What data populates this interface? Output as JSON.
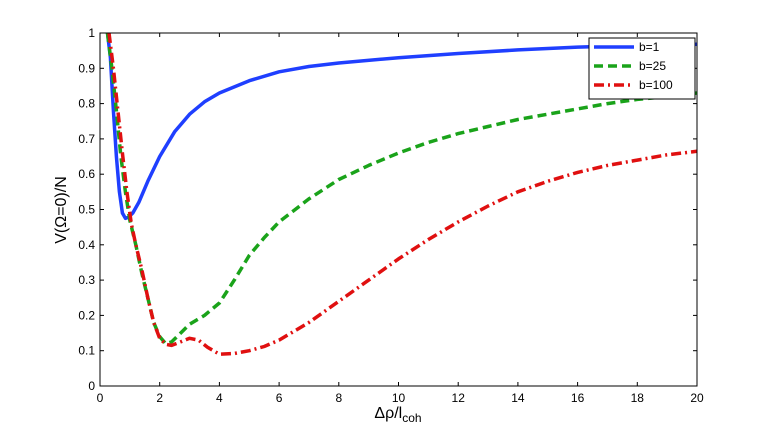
{
  "chart_data": {
    "type": "line",
    "xlabel": "Δρ/l",
    "xlabel_sub": "coh",
    "ylabel": "V(Ω=0)/N",
    "xlim": [
      0,
      20
    ],
    "ylim": [
      0,
      1
    ],
    "x_ticks": [
      "0",
      "2",
      "4",
      "6",
      "8",
      "10",
      "12",
      "14",
      "16",
      "18",
      "20"
    ],
    "y_ticks": [
      "0",
      "0.1",
      "0.2",
      "0.3",
      "0.4",
      "0.5",
      "0.6",
      "0.7",
      "0.8",
      "0.9",
      "1"
    ],
    "grid": false,
    "legend_position": "top-right",
    "series": [
      {
        "name": "b=1",
        "color": "#1f3fff",
        "style": "solid",
        "points": [
          [
            0.25,
            1.0
          ],
          [
            0.35,
            0.93
          ],
          [
            0.45,
            0.78
          ],
          [
            0.55,
            0.65
          ],
          [
            0.65,
            0.55
          ],
          [
            0.75,
            0.49
          ],
          [
            0.85,
            0.475
          ],
          [
            0.95,
            0.478
          ],
          [
            1.1,
            0.49
          ],
          [
            1.3,
            0.52
          ],
          [
            1.6,
            0.58
          ],
          [
            2.0,
            0.65
          ],
          [
            2.5,
            0.72
          ],
          [
            3.0,
            0.77
          ],
          [
            3.5,
            0.805
          ],
          [
            4.0,
            0.83
          ],
          [
            5.0,
            0.865
          ],
          [
            6.0,
            0.89
          ],
          [
            7.0,
            0.905
          ],
          [
            8.0,
            0.915
          ],
          [
            10.0,
            0.93
          ],
          [
            12.0,
            0.942
          ],
          [
            14.0,
            0.952
          ],
          [
            16.0,
            0.96
          ],
          [
            18.0,
            0.965
          ],
          [
            20.0,
            0.968
          ]
        ]
      },
      {
        "name": "b=25",
        "color": "#1aa31a",
        "style": "dashed",
        "points": [
          [
            0.25,
            1.0
          ],
          [
            0.4,
            0.9
          ],
          [
            0.55,
            0.78
          ],
          [
            0.7,
            0.65
          ],
          [
            0.85,
            0.55
          ],
          [
            1.0,
            0.47
          ],
          [
            1.2,
            0.4
          ],
          [
            1.4,
            0.32
          ],
          [
            1.6,
            0.25
          ],
          [
            1.8,
            0.18
          ],
          [
            2.0,
            0.14
          ],
          [
            2.2,
            0.12
          ],
          [
            2.4,
            0.125
          ],
          [
            2.7,
            0.15
          ],
          [
            3.0,
            0.175
          ],
          [
            3.5,
            0.2
          ],
          [
            4.0,
            0.235
          ],
          [
            4.5,
            0.3
          ],
          [
            5.0,
            0.37
          ],
          [
            5.5,
            0.42
          ],
          [
            6.0,
            0.465
          ],
          [
            7.0,
            0.53
          ],
          [
            8.0,
            0.585
          ],
          [
            9.0,
            0.625
          ],
          [
            10.0,
            0.66
          ],
          [
            11.0,
            0.69
          ],
          [
            12.0,
            0.715
          ],
          [
            13.0,
            0.735
          ],
          [
            14.0,
            0.755
          ],
          [
            15.0,
            0.77
          ],
          [
            16.0,
            0.785
          ],
          [
            17.0,
            0.8
          ],
          [
            18.0,
            0.812
          ],
          [
            19.0,
            0.82
          ],
          [
            20.0,
            0.83
          ]
        ]
      },
      {
        "name": "b=100",
        "color": "#e01010",
        "style": "dashdot",
        "points": [
          [
            0.3,
            1.0
          ],
          [
            0.45,
            0.9
          ],
          [
            0.6,
            0.78
          ],
          [
            0.75,
            0.66
          ],
          [
            0.9,
            0.55
          ],
          [
            1.05,
            0.46
          ],
          [
            1.2,
            0.4
          ],
          [
            1.4,
            0.33
          ],
          [
            1.6,
            0.25
          ],
          [
            1.8,
            0.18
          ],
          [
            2.0,
            0.135
          ],
          [
            2.2,
            0.118
          ],
          [
            2.4,
            0.115
          ],
          [
            2.7,
            0.125
          ],
          [
            3.0,
            0.135
          ],
          [
            3.3,
            0.13
          ],
          [
            3.6,
            0.11
          ],
          [
            4.0,
            0.09
          ],
          [
            4.5,
            0.092
          ],
          [
            5.0,
            0.1
          ],
          [
            5.5,
            0.112
          ],
          [
            6.0,
            0.13
          ],
          [
            7.0,
            0.18
          ],
          [
            8.0,
            0.24
          ],
          [
            9.0,
            0.3
          ],
          [
            10.0,
            0.36
          ],
          [
            11.0,
            0.415
          ],
          [
            12.0,
            0.465
          ],
          [
            13.0,
            0.51
          ],
          [
            14.0,
            0.55
          ],
          [
            15.0,
            0.58
          ],
          [
            16.0,
            0.605
          ],
          [
            17.0,
            0.625
          ],
          [
            18.0,
            0.64
          ],
          [
            19.0,
            0.655
          ],
          [
            20.0,
            0.665
          ]
        ]
      }
    ]
  }
}
